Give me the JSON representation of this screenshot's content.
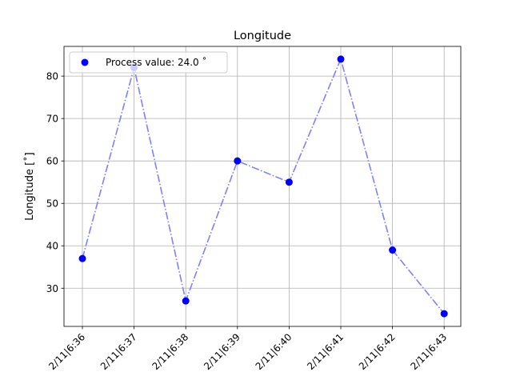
{
  "chart_data": {
    "type": "line",
    "title": "Longitude",
    "xlabel": "",
    "ylabel": "Longitude  [˚]",
    "categories": [
      "2/11|6:36",
      "2/11|6:37",
      "2/11|6:38",
      "2/11|6:39",
      "2/11|6:40",
      "2/11|6:41",
      "2/11|6:42",
      "2/11|6:43"
    ],
    "series": [
      {
        "name": "Process value: 24.0 ˚",
        "values": [
          37,
          82,
          27,
          60,
          55,
          84,
          39,
          24
        ]
      }
    ],
    "ylim": [
      21,
      87
    ],
    "yticks": [
      30,
      40,
      50,
      60,
      70,
      80
    ],
    "grid": true,
    "legend": "top-left",
    "colors": {
      "marker": "#0000ff",
      "line": "#8080ff",
      "grid": "#b0b0b0"
    }
  }
}
